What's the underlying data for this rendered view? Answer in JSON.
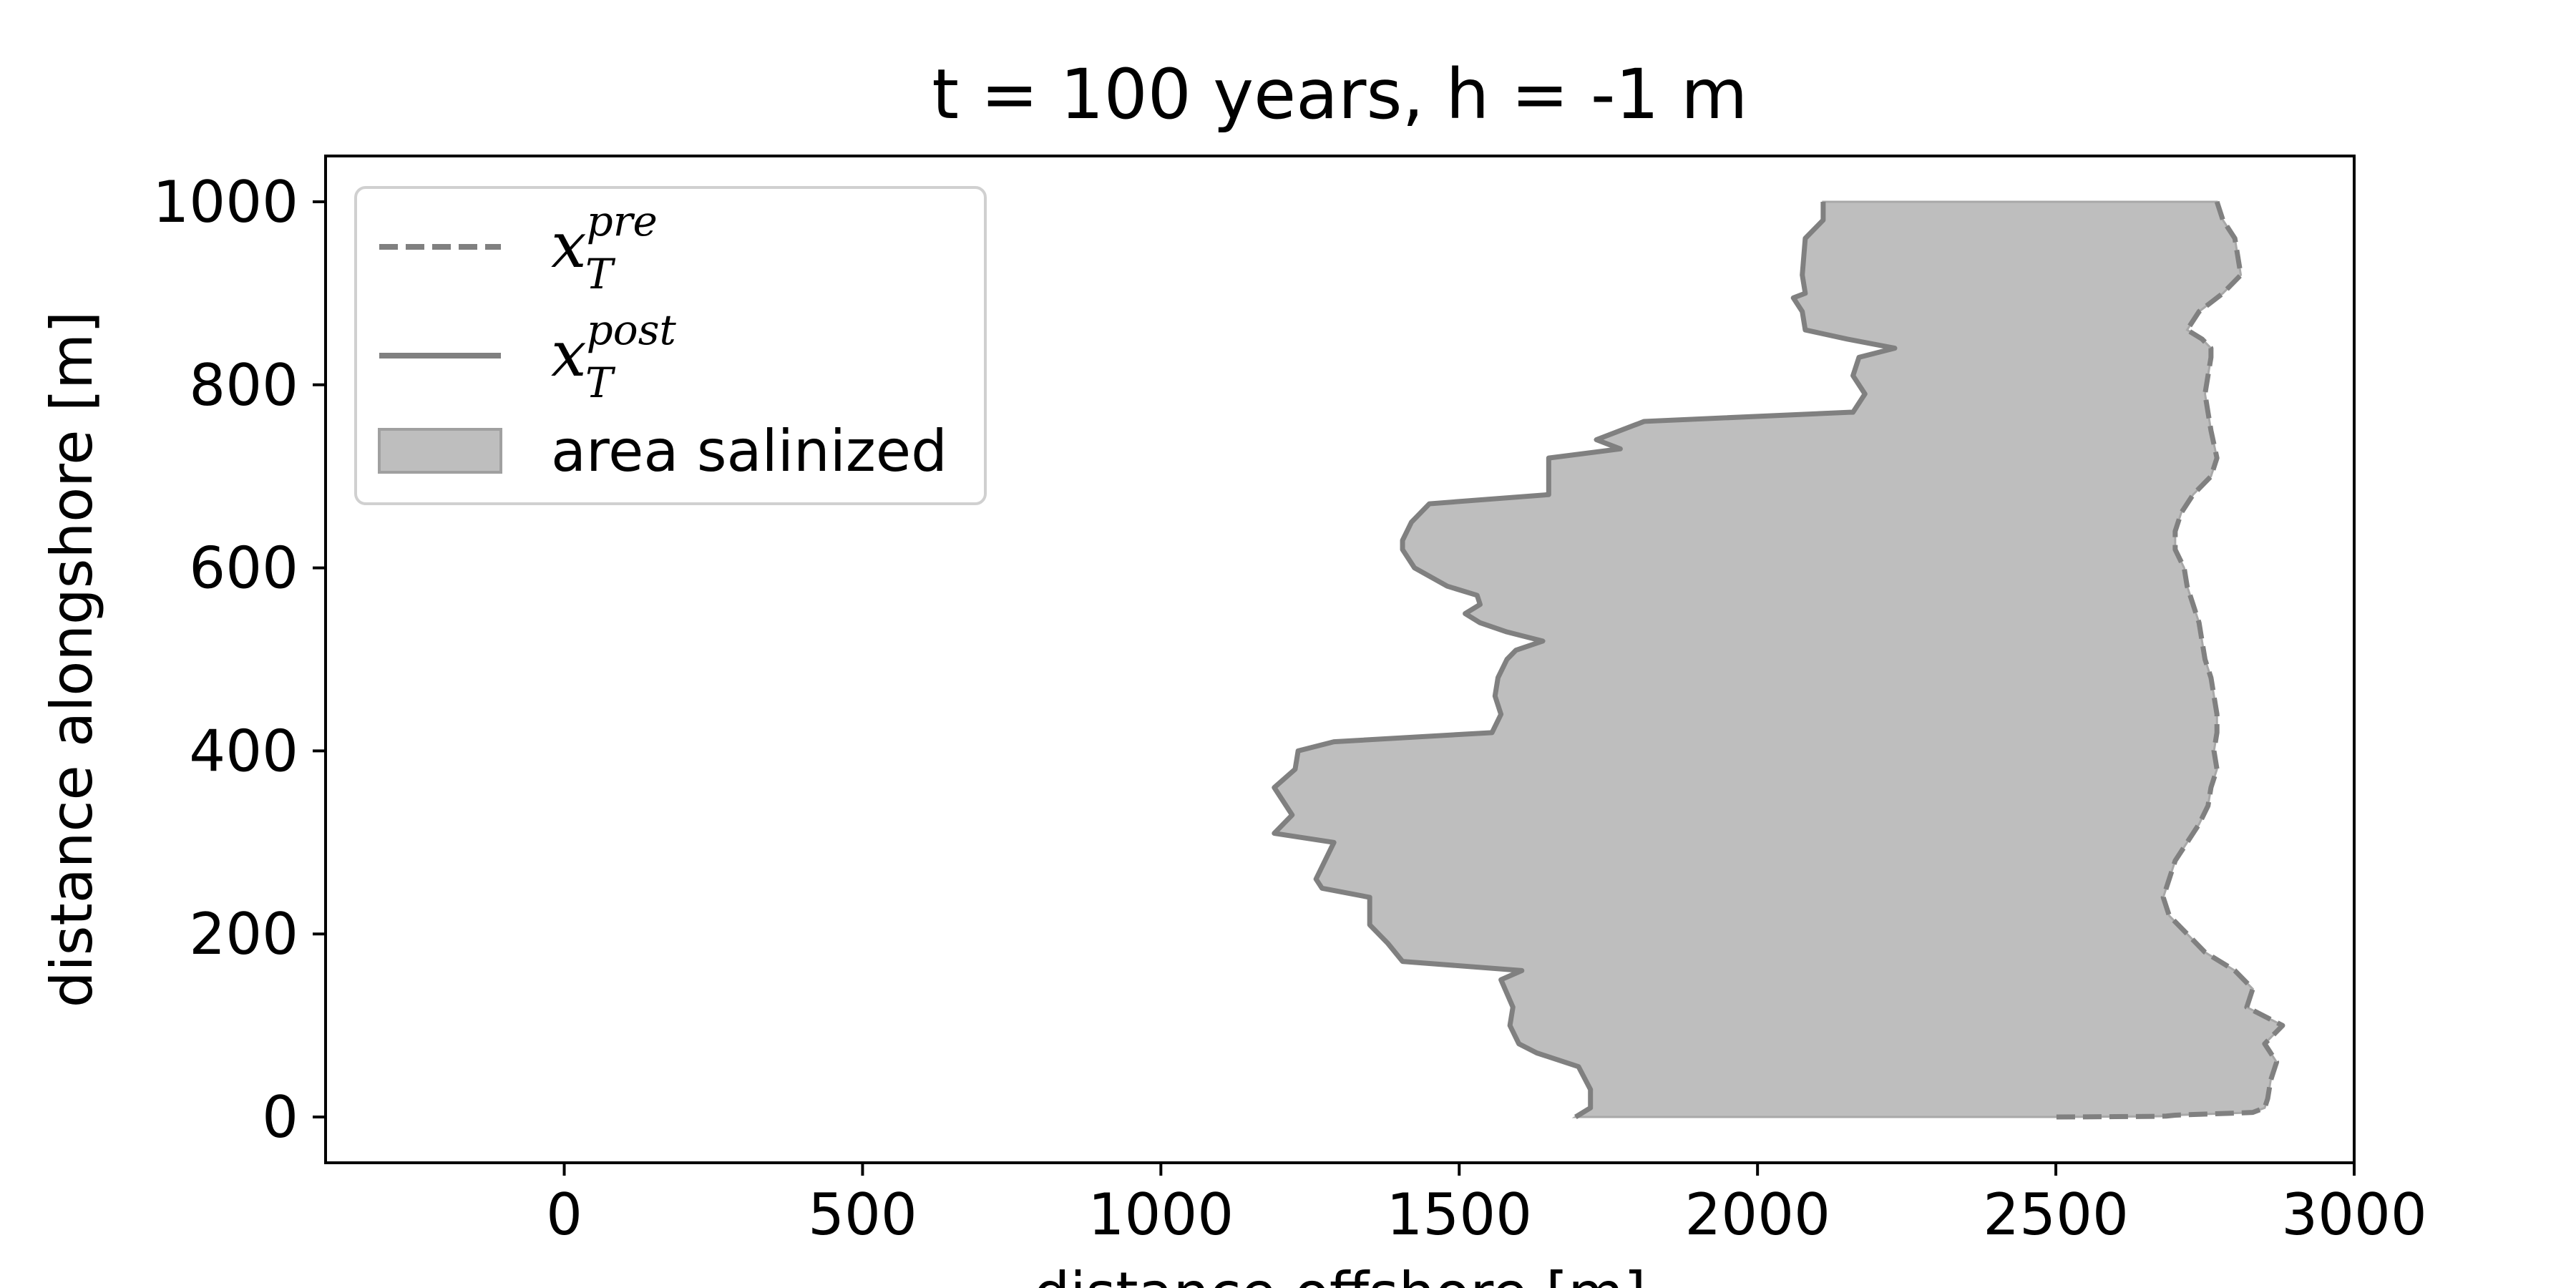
{
  "chart_data": {
    "type": "area",
    "title": "t = 100 years, h = -1 m",
    "xlabel": "distance offshore [m]",
    "ylabel": "distance alongshore [m]",
    "xlim": [
      -400,
      3000
    ],
    "ylim": [
      -50,
      1050
    ],
    "xticks": [
      0,
      500,
      1000,
      1500,
      2000,
      2500,
      3000
    ],
    "yticks": [
      0,
      200,
      400,
      600,
      800,
      1000
    ],
    "grid": false,
    "legend_position": "upper-left",
    "fill_color": "#bebebe",
    "line_color": "#808080",
    "legend": [
      {
        "key": "pre",
        "symbol": "x",
        "subscript": "T",
        "superscript": "pre",
        "style": "dashed"
      },
      {
        "key": "post",
        "symbol": "x",
        "subscript": "T",
        "superscript": "post",
        "style": "solid"
      },
      {
        "key": "area",
        "label": "area salinized",
        "style": "patch"
      }
    ],
    "series": [
      {
        "name": "x_T^post",
        "style": "solid",
        "x": [
          2110,
          2110,
          2080,
          2075,
          2080,
          2060,
          2075,
          2080,
          2150,
          2230,
          2170,
          2160,
          2180,
          2160,
          2155,
          1810,
          1730,
          1770,
          1650,
          1650,
          1450,
          1420,
          1405,
          1405,
          1425,
          1480,
          1530,
          1535,
          1510,
          1535,
          1580,
          1640,
          1595,
          1580,
          1565,
          1560,
          1570,
          1555,
          1290,
          1230,
          1225,
          1190,
          1220,
          1190,
          1290,
          1260,
          1270,
          1350,
          1350,
          1380,
          1405,
          1605,
          1570,
          1590,
          1585,
          1600,
          1630,
          1700,
          1720,
          1720,
          1695
        ],
        "y": [
          1000,
          980,
          960,
          920,
          900,
          895,
          880,
          860,
          850,
          840,
          830,
          810,
          790,
          770,
          770,
          760,
          740,
          730,
          720,
          680,
          670,
          650,
          630,
          620,
          600,
          580,
          570,
          560,
          550,
          540,
          530,
          520,
          510,
          500,
          480,
          460,
          440,
          420,
          410,
          400,
          380,
          360,
          330,
          310,
          300,
          260,
          250,
          240,
          210,
          190,
          170,
          160,
          150,
          120,
          100,
          80,
          70,
          55,
          30,
          10,
          0
        ]
      },
      {
        "name": "x_T^pre",
        "style": "dashed",
        "x": [
          2770,
          2780,
          2800,
          2810,
          2780,
          2740,
          2720,
          2745,
          2760,
          2760,
          2755,
          2750,
          2755,
          2760,
          2770,
          2760,
          2730,
          2710,
          2700,
          2700,
          2715,
          2720,
          2730,
          2740,
          2745,
          2750,
          2760,
          2765,
          2770,
          2770,
          2765,
          2770,
          2760,
          2755,
          2740,
          2720,
          2700,
          2690,
          2680,
          2690,
          2720,
          2750,
          2800,
          2830,
          2820,
          2880,
          2850,
          2870,
          2860,
          2855,
          2850,
          2830,
          2790,
          2740,
          2700,
          2685,
          2675,
          2650,
          2600,
          2560,
          2500
        ],
        "y": [
          1000,
          980,
          960,
          920,
          900,
          880,
          860,
          850,
          840,
          830,
          810,
          790,
          770,
          750,
          720,
          700,
          680,
          660,
          640,
          620,
          600,
          580,
          560,
          540,
          520,
          500,
          480,
          460,
          440,
          420,
          400,
          380,
          360,
          340,
          320,
          300,
          280,
          260,
          240,
          220,
          200,
          180,
          160,
          140,
          120,
          100,
          80,
          60,
          40,
          20,
          10,
          5,
          4,
          3,
          2,
          1,
          0.8,
          0.6,
          0.4,
          0.2,
          0
        ]
      }
    ]
  }
}
